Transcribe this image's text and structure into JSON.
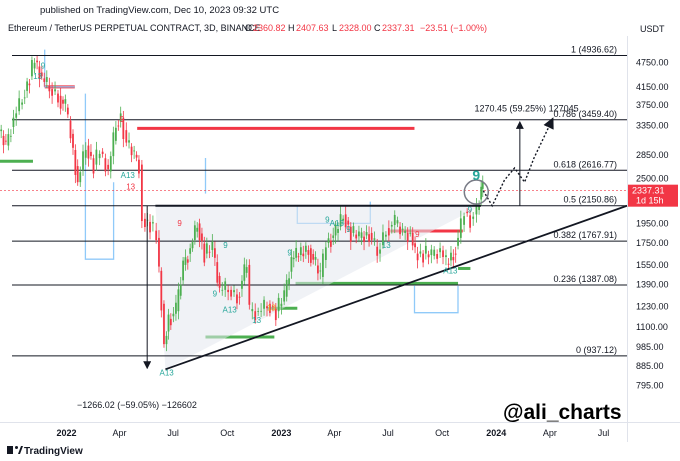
{
  "header": {
    "published": "published on TradingView.com, Dec 10, 2023 09:32 UTC",
    "symbol": "Ethereum / TetherUS PERPETUAL CONTRACT, 3D, BINANCE",
    "o_label": "O",
    "o_value": "2360.82",
    "h_label": "H",
    "h_value": "2407.63",
    "l_label": "L",
    "l_value": "2328.00",
    "c_label": "C",
    "c_value": "2337.31",
    "change": "−23.51 (−1.00%)"
  },
  "price_tag": {
    "price": "2337.31",
    "countdown": "1d 15h"
  },
  "watermark": "@ali_charts",
  "footer": {
    "brand": "TradingView"
  },
  "annotations": {
    "target": "1270.45 (59.25%) 127045",
    "drop": "−1266.02 (−59.05%) −126602",
    "nine": "9"
  },
  "markers": [
    {
      "text": "13",
      "x": "2021-11-13",
      "y": 4330,
      "color": "#26a69a"
    },
    {
      "text": "9",
      "x": "2021-11-22",
      "y": 4600,
      "color": "#26a69a"
    },
    {
      "text": "9",
      "x": "2022-04-05",
      "y": 3420,
      "color": "#f23645"
    },
    {
      "text": "A13",
      "x": "2022-04-15",
      "y": 2510,
      "color": "#26a69a"
    },
    {
      "text": "13",
      "x": "2022-04-20",
      "y": 2350,
      "color": "#f23645"
    },
    {
      "text": "A13",
      "x": "2022-06-20",
      "y": 840,
      "color": "#26a69a"
    },
    {
      "text": "9",
      "x": "2022-07-12",
      "y": 1920,
      "color": "#f23645"
    },
    {
      "text": "9",
      "x": "2022-09-10",
      "y": 1300,
      "color": "#26a69a"
    },
    {
      "text": "9",
      "x": "2022-09-28",
      "y": 1700,
      "color": "#26a69a"
    },
    {
      "text": "A13",
      "x": "2022-10-05",
      "y": 1190,
      "color": "#26a69a"
    },
    {
      "text": "13",
      "x": "2022-11-20",
      "y": 1125,
      "color": "#26a69a"
    },
    {
      "text": "13",
      "x": "2022-12-15",
      "y": 1205,
      "color": "#f5a623"
    },
    {
      "text": "9",
      "x": "2023-01-15",
      "y": 1635,
      "color": "#26a69a"
    },
    {
      "text": "9",
      "x": "2023-03-20",
      "y": 1960,
      "color": "#26a69a"
    },
    {
      "text": "A13",
      "x": "2023-04-05",
      "y": 1920,
      "color": "#26a69a"
    },
    {
      "text": "9",
      "x": "2023-04-25",
      "y": 1860,
      "color": "#26a69a"
    },
    {
      "text": "13",
      "x": "2023-06-28",
      "y": 1700,
      "color": "#26a69a"
    },
    {
      "text": "9",
      "x": "2023-08-20",
      "y": 1810,
      "color": "#f23645"
    },
    {
      "text": "A13",
      "x": "2023-10-15",
      "y": 1480,
      "color": "#26a69a"
    },
    {
      "text": "9",
      "x": "2023-11-17",
      "y": 2070,
      "color": "#26a69a"
    }
  ],
  "chart_data": {
    "type": "candlestick",
    "title": "Ethereum / TetherUS PERPETUAL CONTRACT, 3D, BINANCE",
    "x_axis": {
      "type": "time",
      "range": [
        "2021-09-10",
        "2024-08-10"
      ],
      "ticks": [
        {
          "label": "2022",
          "date": "2022-01-01",
          "bold": true
        },
        {
          "label": "Apr",
          "date": "2022-04-01"
        },
        {
          "label": "Jul",
          "date": "2022-07-01"
        },
        {
          "label": "Oct",
          "date": "2022-10-01"
        },
        {
          "label": "2023",
          "date": "2023-01-01",
          "bold": true
        },
        {
          "label": "Apr",
          "date": "2023-04-01"
        },
        {
          "label": "Jul",
          "date": "2023-07-01"
        },
        {
          "label": "Oct",
          "date": "2023-10-01"
        },
        {
          "label": "2024",
          "date": "2024-01-01",
          "bold": true
        },
        {
          "label": "Apr",
          "date": "2024-04-01"
        },
        {
          "label": "Jul",
          "date": "2024-07-01"
        }
      ]
    },
    "y_axis": {
      "scale": "log",
      "unit": "USDT",
      "range": [
        650,
        5500
      ],
      "ticks": [
        795,
        885,
        985,
        1100,
        1230,
        1390,
        1550,
        1750,
        1950,
        2200,
        2500,
        2850,
        3350,
        3750,
        4150,
        4750
      ],
      "tick_labels": [
        "795.00",
        "885.00",
        "985.00",
        "1100.00",
        "1230.00",
        "1390.00",
        "1550.00",
        "1750.00",
        "1950.00",
        "2200.00",
        "2500.00",
        "2850.00",
        "3350.00",
        "3750.00",
        "4150.00",
        "4750.00"
      ]
    },
    "fib_levels": [
      {
        "ratio": "1",
        "price": 4936.62,
        "label": "1 (4936.62)"
      },
      {
        "ratio": "0.786",
        "price": 3459.4,
        "label": "0.786 (3459.40)"
      },
      {
        "ratio": "0.618",
        "price": 2616.77,
        "label": "0.618 (2616.77)"
      },
      {
        "ratio": "0.5",
        "price": 2150.86,
        "label": "0.5 (2150.86)"
      },
      {
        "ratio": "0.382",
        "price": 1767.91,
        "label": "0.382 (1767.91)"
      },
      {
        "ratio": "0.236",
        "price": 1387.08,
        "label": "0.236 (1387.08)"
      },
      {
        "ratio": "0",
        "price": 937.12,
        "label": "0 (937.12)"
      }
    ],
    "last_price": 2337.31,
    "series": [
      {
        "name": "price",
        "points": [
          [
            "2021-09-10",
            3250
          ],
          [
            "2021-09-22",
            3000
          ],
          [
            "2021-10-05",
            3500
          ],
          [
            "2021-10-20",
            3900
          ],
          [
            "2021-11-01",
            4400
          ],
          [
            "2021-11-10",
            4800
          ],
          [
            "2021-11-22",
            4350
          ],
          [
            "2021-12-05",
            4100
          ],
          [
            "2021-12-20",
            3950
          ],
          [
            "2022-01-01",
            3700
          ],
          [
            "2022-01-10",
            3200
          ],
          [
            "2022-01-22",
            2450
          ],
          [
            "2022-02-05",
            3000
          ],
          [
            "2022-02-18",
            2700
          ],
          [
            "2022-03-01",
            2900
          ],
          [
            "2022-03-15",
            2600
          ],
          [
            "2022-03-28",
            3350
          ],
          [
            "2022-04-05",
            3500
          ],
          [
            "2022-04-15",
            3050
          ],
          [
            "2022-04-28",
            2850
          ],
          [
            "2022-05-06",
            2700
          ],
          [
            "2022-05-12",
            2000
          ],
          [
            "2022-05-25",
            1950
          ],
          [
            "2022-06-05",
            1800
          ],
          [
            "2022-06-13",
            1250
          ],
          [
            "2022-06-18",
            1000
          ],
          [
            "2022-06-25",
            1150
          ],
          [
            "2022-07-08",
            1200
          ],
          [
            "2022-07-20",
            1550
          ],
          [
            "2022-08-01",
            1700
          ],
          [
            "2022-08-13",
            1950
          ],
          [
            "2022-08-25",
            1650
          ],
          [
            "2022-09-08",
            1700
          ],
          [
            "2022-09-20",
            1350
          ],
          [
            "2022-10-05",
            1350
          ],
          [
            "2022-10-20",
            1300
          ],
          [
            "2022-11-05",
            1550
          ],
          [
            "2022-11-10",
            1200
          ],
          [
            "2022-11-25",
            1200
          ],
          [
            "2022-12-10",
            1250
          ],
          [
            "2022-12-25",
            1200
          ],
          [
            "2023-01-08",
            1300
          ],
          [
            "2023-01-20",
            1600
          ],
          [
            "2023-02-05",
            1650
          ],
          [
            "2023-02-18",
            1700
          ],
          [
            "2023-03-10",
            1450
          ],
          [
            "2023-03-20",
            1750
          ],
          [
            "2023-04-05",
            1850
          ],
          [
            "2023-04-18",
            2050
          ],
          [
            "2023-05-01",
            1850
          ],
          [
            "2023-05-15",
            1800
          ],
          [
            "2023-06-01",
            1850
          ],
          [
            "2023-06-15",
            1650
          ],
          [
            "2023-06-30",
            1900
          ],
          [
            "2023-07-15",
            1950
          ],
          [
            "2023-07-28",
            1850
          ],
          [
            "2023-08-10",
            1850
          ],
          [
            "2023-08-18",
            1650
          ],
          [
            "2023-09-01",
            1650
          ],
          [
            "2023-09-15",
            1630
          ],
          [
            "2023-09-30",
            1680
          ],
          [
            "2023-10-10",
            1560
          ],
          [
            "2023-10-22",
            1650
          ],
          [
            "2023-10-30",
            1800
          ],
          [
            "2023-11-10",
            2080
          ],
          [
            "2023-11-20",
            2000
          ],
          [
            "2023-12-01",
            2100
          ],
          [
            "2023-12-08",
            2360
          ],
          [
            "2023-12-10",
            2337
          ]
        ]
      },
      {
        "name": "projection",
        "points": [
          [
            "2023-12-10",
            2337
          ],
          [
            "2023-12-25",
            2150
          ],
          [
            "2024-01-15",
            2480
          ],
          [
            "2024-02-01",
            2650
          ],
          [
            "2024-02-18",
            2450
          ],
          [
            "2024-03-05",
            2800
          ],
          [
            "2024-04-05",
            3460
          ]
        ]
      }
    ],
    "trendlines": [
      {
        "name": "triangle-top",
        "from": [
          "2022-06-01",
          2150.86
        ],
        "to": [
          "2023-12-06",
          2150.86
        ]
      },
      {
        "name": "triangle-base",
        "from": [
          "2022-06-18",
          870
        ],
        "to": [
          "2024-08-10",
          2150
        ]
      }
    ],
    "zones": [
      {
        "name": "resistance-red-1",
        "from": "2021-11-25",
        "to": "2022-01-15",
        "price": 4150,
        "color": "#f23645"
      },
      {
        "name": "resistance-red-2",
        "from": "2022-05-01",
        "to": "2023-08-15",
        "price": 3300,
        "color": "#f23645"
      },
      {
        "name": "support-green-1",
        "from": "2021-09-10",
        "to": "2021-11-05",
        "price": 2750,
        "color": "#4caf50"
      },
      {
        "name": "support-green-2",
        "from": "2022-08-25",
        "to": "2022-12-20",
        "price": 1040,
        "color": "#4caf50"
      },
      {
        "name": "support-green-3",
        "from": "2022-12-08",
        "to": "2023-01-28",
        "price": 1220,
        "color": "#4caf50"
      },
      {
        "name": "support-green-4",
        "from": "2023-01-25",
        "to": "2023-10-28",
        "price": 1400,
        "color": "#4caf50"
      },
      {
        "name": "support-green-5",
        "from": "2023-10-28",
        "to": "2023-11-18",
        "price": 1520,
        "color": "#4caf50"
      },
      {
        "name": "resistance-red-3",
        "from": "2023-07-05",
        "to": "2023-11-05",
        "price": 1870,
        "color": "#f23645"
      }
    ]
  }
}
